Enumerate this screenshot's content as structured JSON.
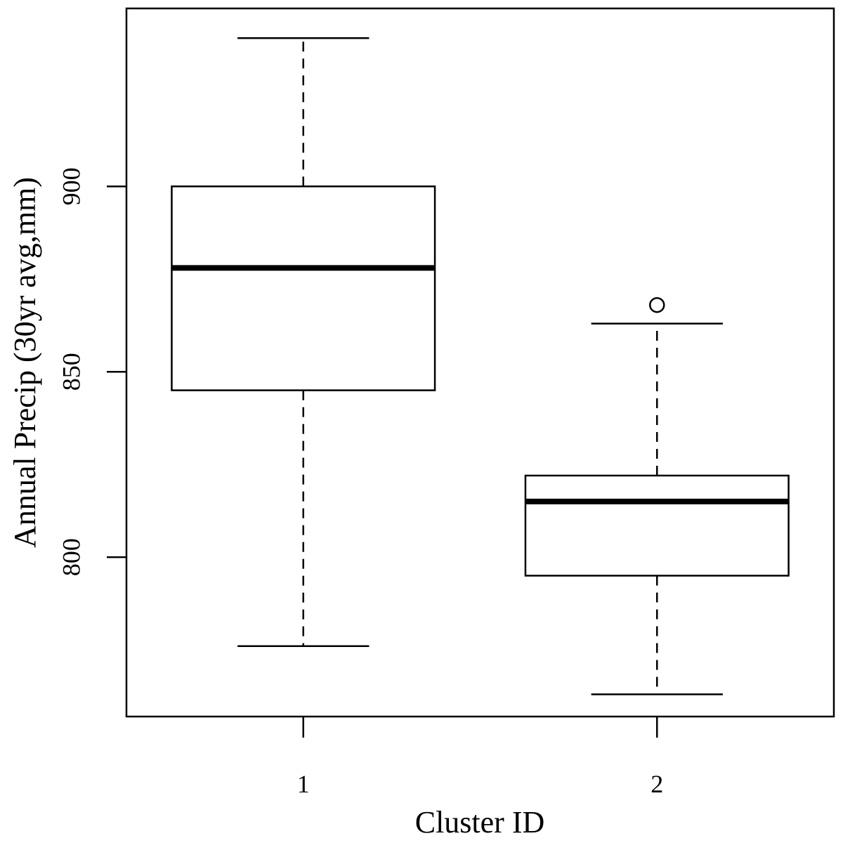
{
  "chart_data": {
    "type": "boxplot",
    "title": "",
    "xlabel": "Cluster ID",
    "ylabel": "Annual Precip (30yr avg,mm)",
    "categories": [
      "1",
      "2"
    ],
    "ylim": [
      757,
      948
    ],
    "yticks": [
      800,
      850,
      900
    ],
    "ytick_labels": [
      "800",
      "850",
      "900"
    ],
    "grid": false,
    "boxes": [
      {
        "category": "1",
        "whisker_low": 776,
        "q1": 845,
        "median": 878,
        "q3": 900,
        "whisker_high": 940,
        "outliers": []
      },
      {
        "category": "2",
        "whisker_low": 763,
        "q1": 795,
        "median": 815,
        "q3": 822,
        "whisker_high": 863,
        "outliers": [
          868
        ]
      }
    ]
  }
}
